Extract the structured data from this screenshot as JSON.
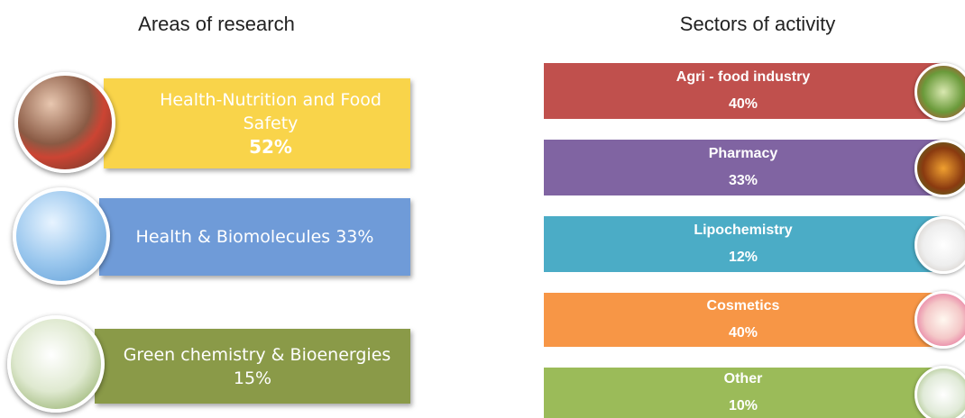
{
  "areas": {
    "title": "Areas of research",
    "items": [
      {
        "label": "Health-Nutrition and Food Safety",
        "percent": "52%"
      },
      {
        "label": "Health & Biomolecules",
        "percent": "33%"
      },
      {
        "label": "Green chemistry & Bioenergies",
        "percent": "15%"
      }
    ]
  },
  "sectors": {
    "title": "Sectors of activity",
    "items": [
      {
        "label": "Agri - food industry",
        "percent": "40%"
      },
      {
        "label": "Pharmacy",
        "percent": "33%"
      },
      {
        "label": "Lipochemistry",
        "percent": "12%"
      },
      {
        "label": "Cosmetics",
        "percent": "40%"
      },
      {
        "label": "Other",
        "percent": "10%"
      }
    ]
  }
}
